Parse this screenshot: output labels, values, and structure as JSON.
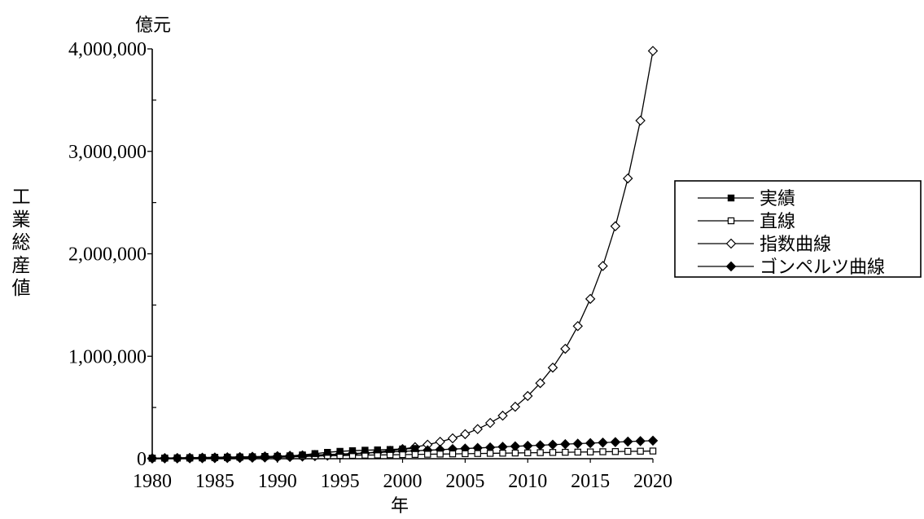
{
  "chart_data": {
    "type": "line",
    "xlabel": "年",
    "ylabel": "工業総産値",
    "yunit": "億元",
    "xlim": [
      1980,
      2020
    ],
    "ylim": [
      0,
      4000000
    ],
    "xticks": [
      1980,
      1985,
      1990,
      1995,
      2000,
      2005,
      2010,
      2015,
      2020
    ],
    "yticks": [
      0,
      1000000,
      2000000,
      3000000,
      4000000
    ],
    "ytick_labels": [
      "0",
      "1,000,000",
      "2,000,000",
      "3,000,000",
      "4,000,000"
    ],
    "grid": false,
    "legend": "right",
    "line_color": "#000000",
    "x": [
      1980,
      1981,
      1982,
      1983,
      1984,
      1985,
      1986,
      1987,
      1988,
      1989,
      1990,
      1991,
      1992,
      1993,
      1994,
      1995,
      1996,
      1997,
      1998,
      1999,
      2000,
      2001,
      2002,
      2003,
      2004,
      2005,
      2006,
      2007,
      2008,
      2009,
      2010,
      2011,
      2012,
      2013,
      2014,
      2015,
      2016,
      2017,
      2018,
      2019,
      2020
    ],
    "series": [
      {
        "name": "実績",
        "marker_icon": "filled-square-icon",
        "values": [
          5000,
          5400,
          5800,
          6500,
          7600,
          9700,
          11000,
          14000,
          18000,
          22000,
          24000,
          28000,
          37000,
          50000,
          62000,
          72000,
          78000,
          83000,
          86000,
          90000,
          95000,
          100000,
          null,
          null,
          null,
          null,
          null,
          null,
          null,
          null,
          null,
          null,
          null,
          null,
          null,
          null,
          null,
          null,
          null,
          null,
          null
        ]
      },
      {
        "name": "直線",
        "marker_icon": "hollow-square-icon",
        "values": [
          5000,
          6750,
          8500,
          10250,
          12000,
          13750,
          15500,
          17250,
          19000,
          20750,
          22500,
          24250,
          26000,
          27750,
          29500,
          31250,
          33000,
          34750,
          36500,
          38250,
          40000,
          41750,
          43500,
          45250,
          47000,
          48750,
          50500,
          52250,
          54000,
          55750,
          57500,
          59250,
          61000,
          62750,
          64500,
          66250,
          68000,
          69750,
          71500,
          73250,
          75000
        ]
      },
      {
        "name": "指数曲線",
        "marker_icon": "hollow-diamond-icon",
        "values": [
          2200,
          2600,
          3100,
          3800,
          4600,
          5500,
          6600,
          8000,
          10000,
          12000,
          14000,
          17000,
          21000,
          25000,
          30000,
          37000,
          44000,
          54000,
          65000,
          78000,
          94000,
          113000,
          137000,
          165000,
          199000,
          240000,
          289000,
          349000,
          420000,
          507000,
          612000,
          738000,
          889000,
          1073000,
          1294000,
          1560000,
          1881000,
          2269000,
          2736000,
          3300000,
          3980000
        ]
      },
      {
        "name": "ゴンペルツ曲線",
        "marker_icon": "filled-diamond-icon",
        "values": [
          5000,
          6000,
          7000,
          8500,
          10000,
          12000,
          14000,
          16000,
          19000,
          22000,
          25000,
          29000,
          33000,
          37000,
          41000,
          46000,
          51000,
          56000,
          61000,
          66000,
          72000,
          77000,
          83000,
          88000,
          94000,
          99000,
          105000,
          110000,
          116000,
          121000,
          126000,
          131000,
          137000,
          142000,
          147000,
          152000,
          157000,
          162000,
          167000,
          172000,
          176000
        ]
      }
    ]
  }
}
